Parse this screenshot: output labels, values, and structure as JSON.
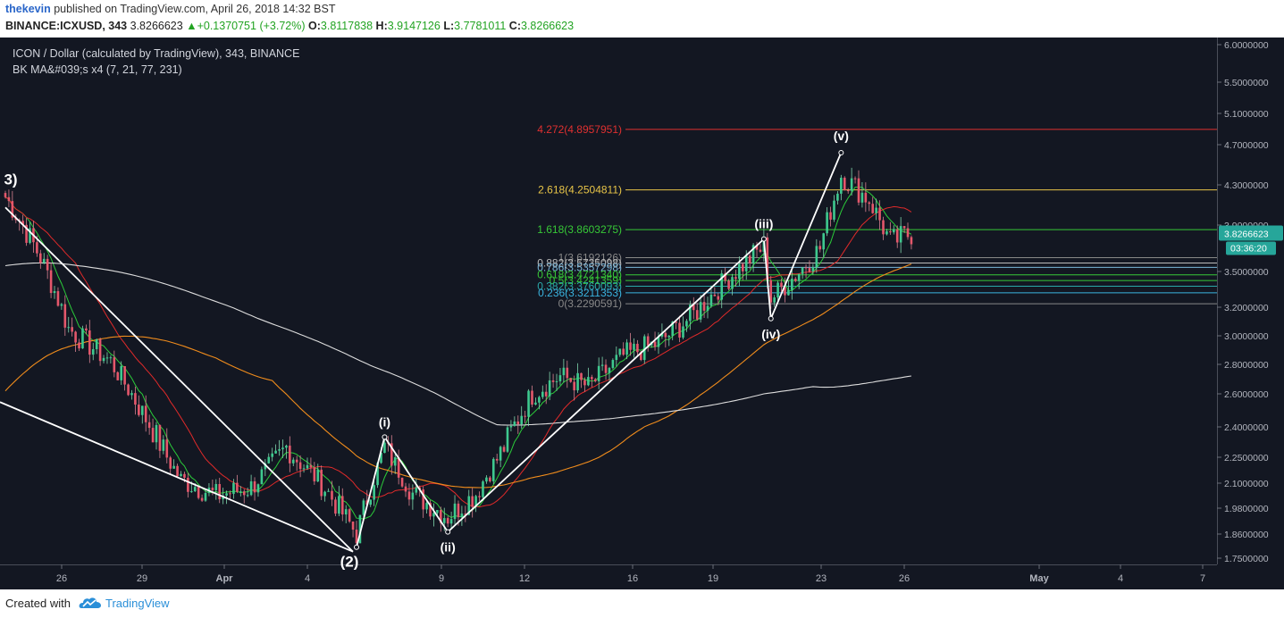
{
  "header": {
    "author": "thekevin",
    "published": "published on TradingView.com, April 26, 2018 14:32 BST",
    "symbol": "BINANCE:ICXUSD, 343",
    "last": "3.8266623",
    "change": "+0.1370751 (+3.72%)",
    "o_label": "O:",
    "o": "3.8117838",
    "h_label": "H:",
    "h": "3.9147126",
    "l_label": "L:",
    "l": "3.7781011",
    "c_label": "C:",
    "c": "3.8266623"
  },
  "legend": {
    "title": "ICON / Dollar (calculated by TradingView), 343, BINANCE",
    "indicator": "BK MA&#039;s x4 (7, 21, 77, 231)"
  },
  "footer": {
    "created_with": "Created with",
    "brand": "TradingView"
  },
  "price_axis": {
    "ticks": [
      "6.0000000",
      "5.5000000",
      "5.1000000",
      "4.7000000",
      "4.3000000",
      "3.9000000",
      "3.5000000",
      "3.2000000",
      "3.0000000",
      "2.8000000",
      "2.6000000",
      "2.4000000",
      "2.2500000",
      "2.1000000",
      "1.9800000",
      "1.8600000",
      "1.7500000"
    ],
    "tick_values": [
      6.0,
      5.5,
      5.1,
      4.7,
      4.3,
      3.9,
      3.5,
      3.2,
      3.0,
      2.8,
      2.6,
      2.4,
      2.25,
      2.1,
      1.98,
      1.86,
      1.75
    ],
    "last_price_label": "3.8266623",
    "countdown_label": "03:36:20"
  },
  "time_axis": {
    "ticks": [
      "26",
      "29",
      "Apr",
      "4",
      "9",
      "12",
      "16",
      "19",
      "23",
      "26",
      "May",
      "4",
      "7"
    ],
    "bold": [
      false,
      false,
      true,
      false,
      false,
      false,
      false,
      false,
      false,
      false,
      true,
      false,
      false
    ]
  },
  "fib_levels": [
    {
      "label": "4.272(4.8957951)",
      "value": 4.8957951,
      "color": "#e03030"
    },
    {
      "label": "2.618(4.2504811)",
      "value": 4.2504811,
      "color": "#e8c548"
    },
    {
      "label": "1.618(3.8603275)",
      "value": 3.8603275,
      "color": "#37c837"
    },
    {
      "label": "1(3.6192126)",
      "value": 3.6192126,
      "color": "#888888"
    },
    {
      "label": "0.882(3.5735098)",
      "value": 3.5735098,
      "color": "#bbbbbb"
    },
    {
      "label": "0.786(3.5357298)",
      "value": 3.5357298,
      "color": "#7ab6d8"
    },
    {
      "label": "0.618(3.4721340)",
      "value": 3.472134,
      "color": "#37c837"
    },
    {
      "label": "0.5(3.4241359)",
      "value": 3.4241359,
      "color": "#37c837"
    },
    {
      "label": "0.382(3.3760093)",
      "value": 3.3760093,
      "color": "#2aa8a8"
    },
    {
      "label": "0.236(3.3211353)",
      "value": 3.3211353,
      "color": "#3ab4e0"
    },
    {
      "label": "0(3.2290591)",
      "value": 3.2290591,
      "color": "#888888"
    }
  ],
  "wave_labels": [
    {
      "label": "3)",
      "bar": 0,
      "price": 4.2
    },
    {
      "label": "(2)",
      "bar": 100,
      "price": 1.8
    },
    {
      "label": "(i)",
      "bar": 108,
      "price": 2.35
    },
    {
      "label": "(ii)",
      "bar": 126,
      "price": 1.87
    },
    {
      "label": "(iii)",
      "bar": 216,
      "price": 3.78
    },
    {
      "label": "(iv)",
      "bar": 218,
      "price": 3.12
    },
    {
      "label": "(v)",
      "bar": 238,
      "price": 4.62
    }
  ],
  "chart_data": {
    "type": "line",
    "title": "ICON / Dollar (calculated by TradingView), 343, BINANCE",
    "series": [
      {
        "name": "ICXUSD",
        "values": [
          {
            "bar": 0,
            "price": 4.18
          },
          {
            "bar": 10,
            "price": 3.62
          },
          {
            "bar": 18,
            "price": 3.05
          },
          {
            "bar": 30,
            "price": 2.82
          },
          {
            "bar": 40,
            "price": 2.45
          },
          {
            "bar": 50,
            "price": 2.12
          },
          {
            "bar": 60,
            "price": 2.04
          },
          {
            "bar": 70,
            "price": 2.08
          },
          {
            "bar": 80,
            "price": 2.3
          },
          {
            "bar": 90,
            "price": 2.1
          },
          {
            "bar": 100,
            "price": 1.86
          },
          {
            "bar": 108,
            "price": 2.3
          },
          {
            "bar": 116,
            "price": 2.05
          },
          {
            "bar": 126,
            "price": 1.94
          },
          {
            "bar": 134,
            "price": 2.05
          },
          {
            "bar": 142,
            "price": 2.3
          },
          {
            "bar": 150,
            "price": 2.6
          },
          {
            "bar": 158,
            "price": 2.72
          },
          {
            "bar": 166,
            "price": 2.65
          },
          {
            "bar": 176,
            "price": 2.86
          },
          {
            "bar": 186,
            "price": 2.95
          },
          {
            "bar": 196,
            "price": 3.15
          },
          {
            "bar": 206,
            "price": 3.45
          },
          {
            "bar": 216,
            "price": 3.72
          },
          {
            "bar": 218,
            "price": 3.27
          },
          {
            "bar": 226,
            "price": 3.5
          },
          {
            "bar": 232,
            "price": 3.7
          },
          {
            "bar": 238,
            "price": 4.4
          },
          {
            "bar": 246,
            "price": 4.15
          },
          {
            "bar": 252,
            "price": 3.75
          },
          {
            "bar": 258,
            "price": 3.83
          }
        ]
      }
    ],
    "moving_averages": [
      {
        "name": "MA 7",
        "color": "#2bcc3a"
      },
      {
        "name": "MA 21",
        "color": "#e02a2a"
      },
      {
        "name": "MA 77",
        "color": "#f08c1c"
      },
      {
        "name": "MA 231",
        "color": "#dddddd"
      }
    ],
    "ylim": [
      1.75,
      6.0
    ],
    "y_scale": "log",
    "grid": false,
    "legend_position": "top-left"
  }
}
